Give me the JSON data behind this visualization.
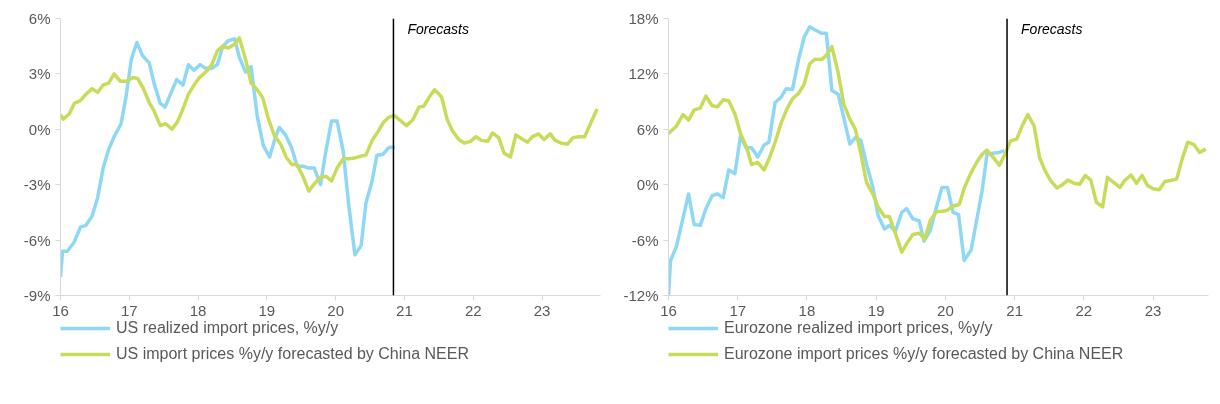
{
  "chart_data": [
    {
      "type": "line",
      "xlim": [
        16,
        23.85
      ],
      "xticks": [
        16,
        17,
        18,
        19,
        20,
        21,
        22,
        23
      ],
      "ylim": [
        -9,
        6
      ],
      "yticks": [
        {
          "value": -9,
          "label": "-9%"
        },
        {
          "value": -6,
          "label": "-6%"
        },
        {
          "value": -3,
          "label": "-3%"
        },
        {
          "value": 0,
          "label": "0%"
        },
        {
          "value": 3,
          "label": "3%"
        },
        {
          "value": 6,
          "label": "6%"
        }
      ],
      "grid": false,
      "legend": "bottom",
      "line_style": "solid",
      "marker": "none",
      "ref_lines": [
        {
          "axis": "x",
          "value": 20.84,
          "label": "Forecasts",
          "color": "#000000"
        }
      ],
      "series": [
        {
          "name": "US realized import prices, %y/y",
          "color": "#8fd8f5",
          "x": [
            16.0,
            16.03,
            16.1,
            16.2,
            16.29,
            16.37,
            16.46,
            16.54,
            16.62,
            16.7,
            16.78,
            16.88,
            16.95,
            17.03,
            17.11,
            17.19,
            17.29,
            17.36,
            17.45,
            17.52,
            17.61,
            17.69,
            17.78,
            17.86,
            17.94,
            18.03,
            18.11,
            18.2,
            18.28,
            18.36,
            18.44,
            18.53,
            18.6,
            18.69,
            18.77,
            18.86,
            18.95,
            19.04,
            19.11,
            19.18,
            19.27,
            19.36,
            19.44,
            19.53,
            19.61,
            19.69,
            19.78,
            19.85,
            19.94,
            20.02,
            20.11,
            20.19,
            20.28,
            20.37,
            20.44,
            20.53,
            20.6,
            20.69,
            20.77,
            20.86
          ],
          "values": [
            -8.0,
            -6.6,
            -6.6,
            -6.1,
            -5.3,
            -5.2,
            -4.7,
            -3.7,
            -2.1,
            -1.1,
            -0.4,
            0.3,
            1.7,
            3.8,
            4.7,
            4.0,
            3.6,
            2.5,
            1.4,
            1.2,
            2.0,
            2.7,
            2.4,
            3.5,
            3.2,
            3.5,
            3.3,
            3.3,
            3.5,
            4.5,
            4.8,
            4.9,
            3.9,
            3.1,
            3.4,
            0.7,
            -0.9,
            -1.5,
            -0.6,
            0.1,
            -0.3,
            -1.0,
            -2.0,
            -2.0,
            -2.1,
            -2.1,
            -3.0,
            -1.35,
            0.45,
            0.45,
            -1.2,
            -4.1,
            -6.8,
            -6.3,
            -4.0,
            -2.8,
            -1.4,
            -1.35,
            -1.0,
            -0.95
          ]
        },
        {
          "name": "US import prices %y/y forecasted by China NEER",
          "color": "#c8dc5a",
          "x": [
            16.0,
            16.04,
            16.13,
            16.2,
            16.29,
            16.37,
            16.46,
            16.54,
            16.62,
            16.7,
            16.78,
            16.87,
            16.95,
            17.05,
            17.12,
            17.2,
            17.29,
            17.36,
            17.45,
            17.53,
            17.62,
            17.7,
            17.78,
            17.86,
            17.95,
            18.02,
            18.11,
            18.2,
            18.28,
            18.36,
            18.44,
            18.53,
            18.6,
            18.69,
            18.77,
            18.86,
            18.94,
            19.02,
            19.11,
            19.2,
            19.28,
            19.36,
            19.44,
            19.53,
            19.61,
            19.69,
            19.78,
            19.86,
            19.94,
            20.02,
            20.11,
            20.2,
            20.28,
            20.37,
            20.44,
            20.53,
            20.62,
            20.69,
            20.77,
            20.85,
            21.03,
            21.12,
            21.21,
            21.28,
            21.37,
            21.44,
            21.54,
            21.62,
            21.7,
            21.79,
            21.87,
            21.96,
            22.04,
            22.12,
            22.21,
            22.28,
            22.37,
            22.45,
            22.54,
            22.62,
            22.7,
            22.79,
            22.86,
            22.95,
            23.03,
            23.12,
            23.19,
            23.28,
            23.37,
            23.45,
            23.54,
            23.62,
            23.71,
            23.8
          ],
          "values": [
            0.8,
            0.55,
            0.85,
            1.4,
            1.55,
            1.9,
            2.2,
            2.0,
            2.4,
            2.5,
            3.0,
            2.6,
            2.6,
            2.8,
            2.75,
            2.25,
            1.45,
            1.0,
            0.2,
            0.3,
            0.0,
            0.4,
            1.1,
            1.9,
            2.45,
            2.8,
            3.1,
            3.5,
            4.25,
            4.5,
            4.4,
            4.6,
            4.95,
            3.8,
            2.5,
            2.15,
            1.7,
            0.6,
            -0.35,
            -0.8,
            -1.5,
            -1.9,
            -1.9,
            -2.6,
            -3.35,
            -2.95,
            -2.6,
            -2.55,
            -2.8,
            -2.1,
            -1.6,
            -1.6,
            -1.55,
            -1.45,
            -1.4,
            -0.6,
            -0.1,
            0.35,
            0.65,
            0.75,
            0.2,
            0.5,
            1.2,
            1.25,
            1.8,
            2.15,
            1.75,
            0.55,
            -0.1,
            -0.55,
            -0.75,
            -0.65,
            -0.4,
            -0.6,
            -0.65,
            -0.2,
            -0.45,
            -1.3,
            -1.5,
            -0.3,
            -0.5,
            -0.7,
            -0.4,
            -0.25,
            -0.55,
            -0.25,
            -0.6,
            -0.75,
            -0.8,
            -0.45,
            -0.4,
            -0.4,
            0.35,
            1.1
          ]
        }
      ]
    },
    {
      "type": "line",
      "xlim": [
        16,
        23.8
      ],
      "xticks": [
        16,
        17,
        18,
        19,
        20,
        21,
        22,
        23
      ],
      "ylim": [
        -12,
        18
      ],
      "yticks": [
        {
          "value": -12,
          "label": "-12%"
        },
        {
          "value": -6,
          "label": "-6%"
        },
        {
          "value": 0,
          "label": "0%"
        },
        {
          "value": 6,
          "label": "6%"
        },
        {
          "value": 12,
          "label": "12%"
        },
        {
          "value": 18,
          "label": "18%"
        }
      ],
      "grid": false,
      "legend": "bottom",
      "line_style": "solid",
      "marker": "none",
      "ref_lines": [
        {
          "axis": "x",
          "value": 20.89,
          "label": "Forecasts",
          "color": "#000000"
        }
      ],
      "series": [
        {
          "name": "Eurozone realized import prices, %y/y",
          "color": "#8fd8f5",
          "x": [
            16.0,
            16.03,
            16.11,
            16.18,
            16.29,
            16.37,
            16.46,
            16.54,
            16.63,
            16.71,
            16.79,
            16.87,
            16.96,
            17.04,
            17.12,
            17.2,
            17.29,
            17.38,
            17.45,
            17.54,
            17.63,
            17.7,
            17.79,
            17.88,
            17.96,
            18.04,
            18.12,
            18.21,
            18.28,
            18.36,
            18.45,
            18.52,
            18.62,
            18.7,
            18.78,
            18.86,
            18.95,
            19.03,
            19.12,
            19.19,
            19.28,
            19.37,
            19.44,
            19.53,
            19.62,
            19.69,
            19.78,
            19.87,
            19.95,
            20.03,
            20.11,
            20.19,
            20.27,
            20.37,
            20.45,
            20.53,
            20.6,
            20.69,
            20.78,
            20.85
          ],
          "values": [
            -12.0,
            -8.2,
            -6.8,
            -4.6,
            -1.0,
            -4.3,
            -4.4,
            -2.6,
            -1.2,
            -1.0,
            -1.4,
            1.6,
            1.2,
            5.3,
            4.0,
            4.0,
            3.0,
            4.3,
            4.6,
            8.9,
            9.5,
            10.4,
            10.3,
            13.6,
            16.0,
            17.1,
            16.75,
            16.4,
            16.4,
            10.2,
            9.8,
            7.65,
            4.4,
            5.1,
            4.8,
            2.2,
            -0.2,
            -3.4,
            -4.8,
            -4.4,
            -5.0,
            -3.0,
            -2.6,
            -3.7,
            -3.9,
            -6.1,
            -5.0,
            -2.45,
            -0.3,
            -0.3,
            -3.0,
            -3.25,
            -8.2,
            -7.1,
            -3.9,
            -0.65,
            3.3,
            3.4,
            3.5,
            3.7
          ]
        },
        {
          "name": "Eurozone import prices %y/y forecasted by China NEER",
          "color": "#c8dc5a",
          "x": [
            16.0,
            16.11,
            16.21,
            16.29,
            16.37,
            16.46,
            16.54,
            16.63,
            16.71,
            16.79,
            16.87,
            16.96,
            17.04,
            17.13,
            17.2,
            17.29,
            17.38,
            17.46,
            17.54,
            17.63,
            17.71,
            17.79,
            17.88,
            17.96,
            18.04,
            18.12,
            18.21,
            18.28,
            18.36,
            18.45,
            18.53,
            18.62,
            18.7,
            18.78,
            18.86,
            18.95,
            19.03,
            19.12,
            19.19,
            19.28,
            19.37,
            19.45,
            19.53,
            19.62,
            19.7,
            19.78,
            19.87,
            19.95,
            20.03,
            20.11,
            20.2,
            20.27,
            20.36,
            20.45,
            20.53,
            20.6,
            20.69,
            20.78,
            20.86,
            20.94,
            21.03,
            21.11,
            21.19,
            21.28,
            21.36,
            21.44,
            21.52,
            21.61,
            21.69,
            21.77,
            21.86,
            21.94,
            22.02,
            22.1,
            22.18,
            22.27,
            22.34,
            22.43,
            22.52,
            22.59,
            22.68,
            22.76,
            22.84,
            22.92,
            23.0,
            23.09,
            23.17,
            23.25,
            23.34,
            23.42,
            23.5,
            23.59,
            23.67,
            23.76
          ],
          "values": [
            5.55,
            6.3,
            7.6,
            7.0,
            8.1,
            8.3,
            9.6,
            8.55,
            8.45,
            9.2,
            9.1,
            7.65,
            5.55,
            4.0,
            2.2,
            2.4,
            1.6,
            2.95,
            4.6,
            6.75,
            8.2,
            9.3,
            9.9,
            10.9,
            13.1,
            13.6,
            13.55,
            14.0,
            14.95,
            12.15,
            8.75,
            7.1,
            6.0,
            3.3,
            0.25,
            -1.0,
            -2.45,
            -3.45,
            -3.45,
            -5.35,
            -7.3,
            -6.25,
            -5.4,
            -5.25,
            -5.9,
            -3.9,
            -2.9,
            -2.9,
            -2.75,
            -2.3,
            -2.15,
            -0.4,
            1.15,
            2.4,
            3.3,
            3.75,
            2.95,
            2.1,
            3.3,
            4.75,
            4.95,
            6.4,
            7.6,
            6.4,
            2.95,
            1.5,
            0.45,
            -0.35,
            0.0,
            0.5,
            0.15,
            0.05,
            1.0,
            0.5,
            -1.9,
            -2.4,
            0.8,
            0.25,
            -0.3,
            0.45,
            1.05,
            0.15,
            1.0,
            -0.1,
            -0.45,
            -0.55,
            0.35,
            0.45,
            0.6,
            2.8,
            4.6,
            4.35,
            3.5,
            3.85
          ]
        }
      ]
    }
  ]
}
